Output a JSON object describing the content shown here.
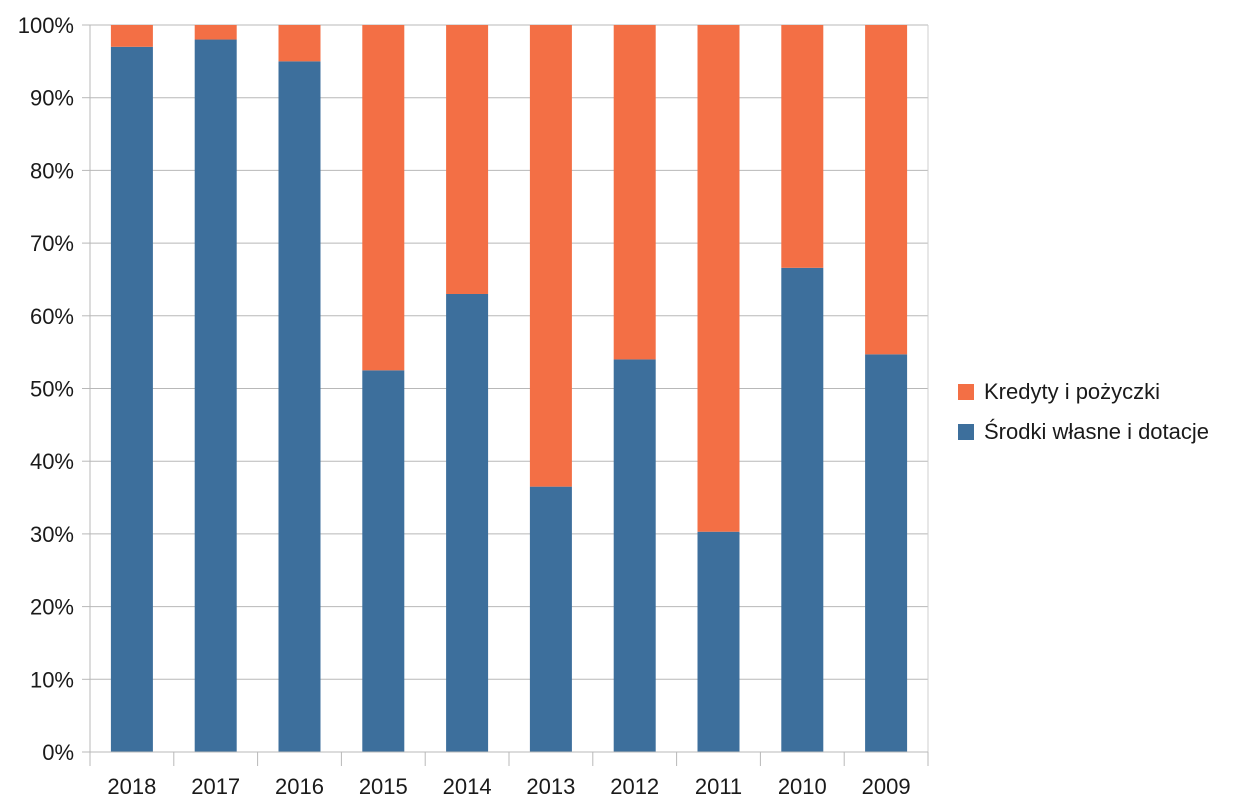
{
  "chart_data": {
    "type": "bar",
    "stacked": true,
    "categories": [
      "2018",
      "2017",
      "2016",
      "2015",
      "2014",
      "2013",
      "2012",
      "2011",
      "2010",
      "2009"
    ],
    "series": [
      {
        "name": "Środki własne i dotacje",
        "color": "#3d6f9c",
        "values": [
          97,
          98,
          95,
          52.5,
          63,
          36.5,
          54,
          30.3,
          66.6,
          54.7
        ]
      },
      {
        "name": "Kredyty i pożyczki",
        "color": "#f36f45",
        "values": [
          3,
          2,
          5,
          47.5,
          37,
          63.5,
          46,
          69.7,
          33.4,
          45.3
        ]
      }
    ],
    "yticks": [
      "0%",
      "10%",
      "20%",
      "30%",
      "40%",
      "50%",
      "60%",
      "70%",
      "80%",
      "90%",
      "100%"
    ],
    "ylim": [
      0,
      100
    ],
    "grid": true,
    "legend_position": "right",
    "legend_order": [
      "Kredyty i pożyczki",
      "Środki własne i dotacje"
    ]
  }
}
